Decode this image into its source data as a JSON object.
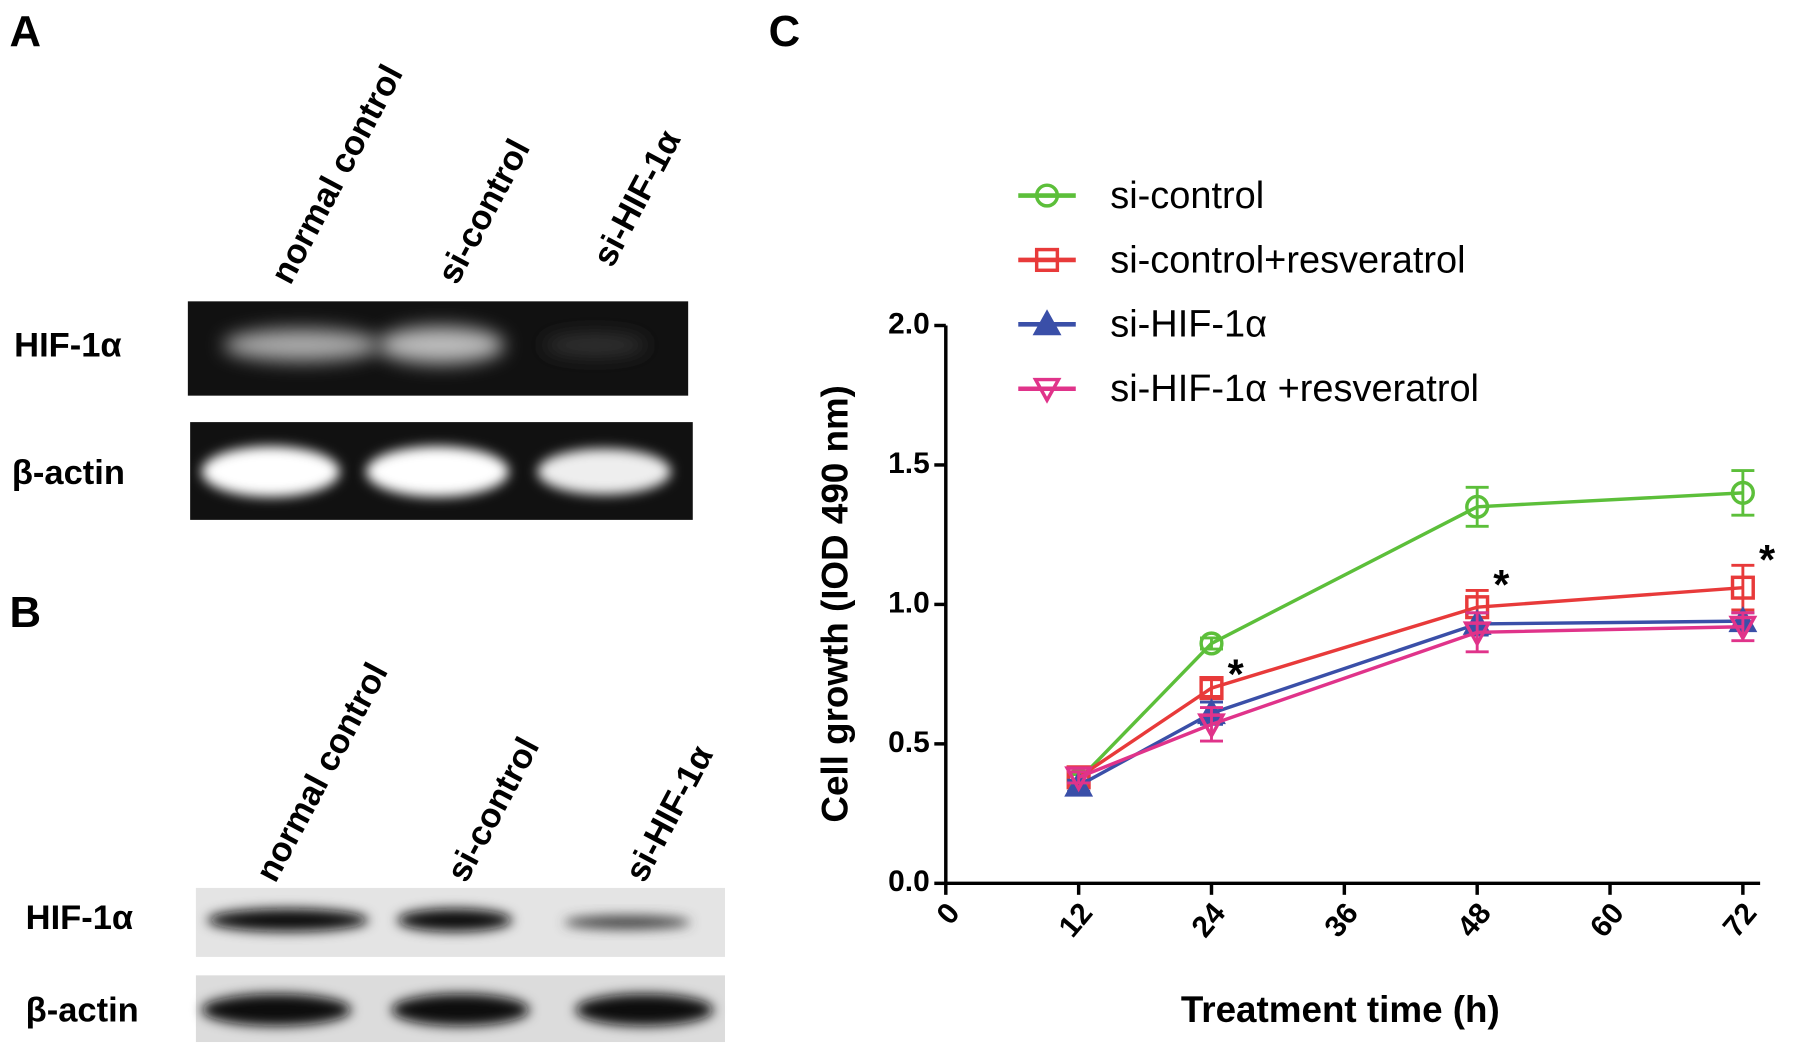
{
  "panels": {
    "A": {
      "label": "A",
      "lanes": [
        "normal control",
        "si-control",
        "si-HIF-1α"
      ],
      "rows": [
        "HIF-1α",
        "β-actin"
      ]
    },
    "B": {
      "label": "B",
      "lanes": [
        "normal control",
        "si-control",
        "si-HIF-1α"
      ],
      "rows": [
        "HIF-1α",
        "β-actin"
      ]
    }
  },
  "chart_data": {
    "type": "line",
    "panel_label": "C",
    "x_label": "Treatment time (h)",
    "y_label": "Cell growth (IOD 490 nm)",
    "x": [
      12,
      24,
      48,
      72
    ],
    "xlim": [
      0,
      72
    ],
    "xticks": [
      0,
      12,
      24,
      36,
      48,
      60,
      72
    ],
    "ylim": [
      0,
      2
    ],
    "yticks": [
      {
        "value": 0,
        "label": "0.0"
      },
      0.5,
      {
        "value": 1,
        "label": "1.0"
      },
      1.5,
      {
        "value": 2,
        "label": "2.0"
      }
    ],
    "series": [
      {
        "name": "si-control",
        "color": "#5cbf3a",
        "marker": "circle",
        "values": [
          0.37,
          0.86,
          1.35,
          1.4
        ],
        "errors": [
          0.02,
          0.02,
          0.07,
          0.08
        ]
      },
      {
        "name": "si-control+resveratrol",
        "color": "#e83a3a",
        "marker": "square",
        "values": [
          0.38,
          0.7,
          0.99,
          1.06
        ],
        "errors": [
          0.02,
          0.03,
          0.06,
          0.08
        ]
      },
      {
        "name": "si-HIF-1α",
        "color": "#3a4fa8",
        "marker": "triangle-up",
        "values": [
          0.35,
          0.61,
          0.93,
          0.94
        ],
        "errors": [
          0.02,
          0.04,
          0.04,
          0.03
        ]
      },
      {
        "name": "si-HIF-1α +resveratrol",
        "color": "#e0338a",
        "marker": "triangle-down",
        "values": [
          0.38,
          0.57,
          0.9,
          0.92
        ],
        "errors": [
          0.02,
          0.06,
          0.07,
          0.05
        ]
      }
    ],
    "annotations": [
      "*",
      "*",
      "*"
    ]
  }
}
